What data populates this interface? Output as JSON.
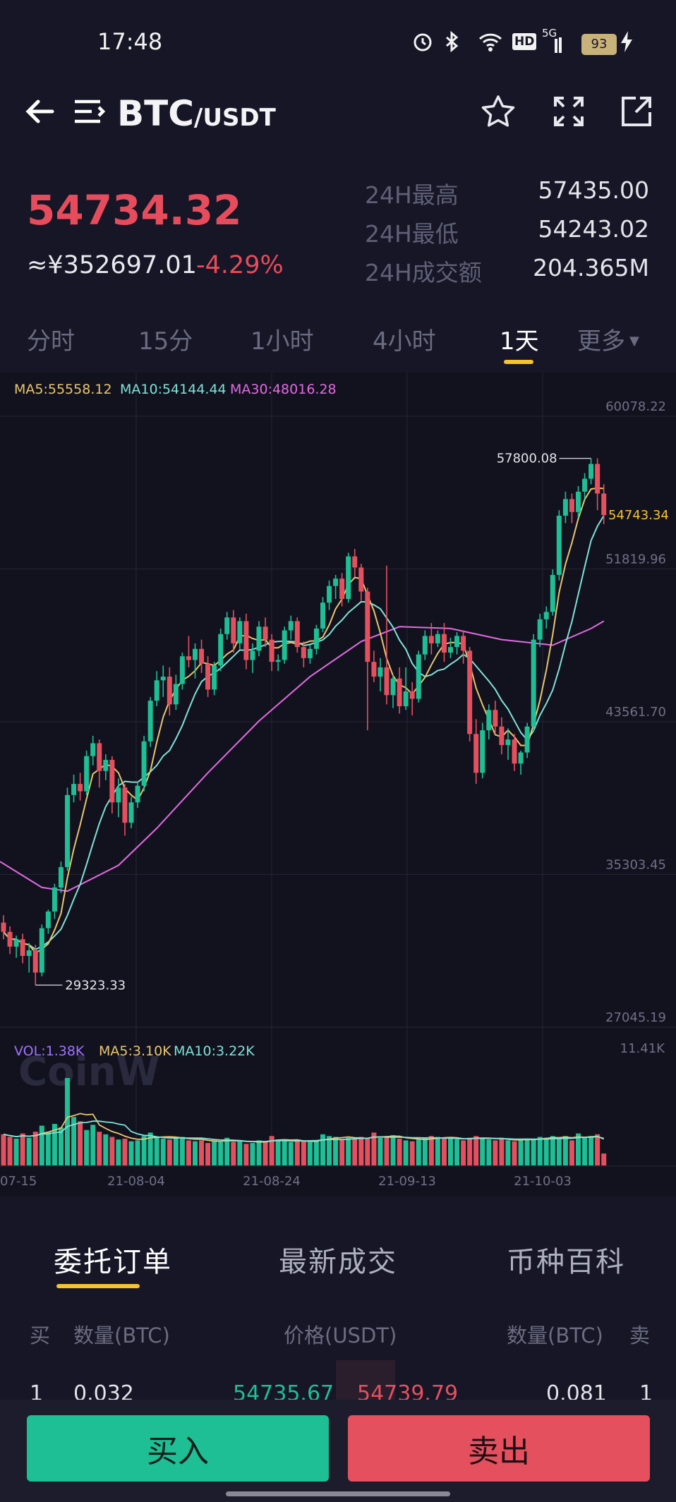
{
  "status_bar": {
    "time": "17:48",
    "network": "5G",
    "hd": "HD",
    "battery": "93",
    "icons": [
      "alarm-icon",
      "bluetooth-icon",
      "wifi-icon",
      "hd-icon",
      "signal-icon",
      "battery-icon",
      "charging-icon"
    ]
  },
  "header": {
    "base": "BTC",
    "quote": "/USDT",
    "icons": [
      "back-arrow-icon",
      "menu-icon",
      "star-icon",
      "fullscreen-icon",
      "share-icon"
    ]
  },
  "ticker": {
    "last_price": "54734.32",
    "cny_price": "≈¥352697.01",
    "change_pct": "-4.29%",
    "stats": [
      {
        "label": "24H最高",
        "value": "57435.00"
      },
      {
        "label": "24H最低",
        "value": "54243.02"
      },
      {
        "label": "24H成交额",
        "value": "204.365M"
      }
    ]
  },
  "timeframes": [
    "分时",
    "15分",
    "1小时",
    "4小时",
    "1天",
    "更多"
  ],
  "active_timeframe": "1天",
  "colors": {
    "up": "#1ebf95",
    "down": "#e5505f",
    "accent": "#f5c32c",
    "ma5": "#e8c66f",
    "ma10": "#7fe3d8",
    "ma30": "#e26be0",
    "vol": "#a173ff"
  },
  "chart_data": {
    "type": "candlestick",
    "indicators": {
      "ma5": "MA5:55558.12",
      "ma10": "MA10:54144.44",
      "ma30": "MA30:48016.28"
    },
    "y_ticks": [
      "60078.22",
      "51819.96",
      "43561.70",
      "35303.45",
      "27045.19"
    ],
    "y_range": [
      27045.19,
      60078.22
    ],
    "current_price_label": "54743.34",
    "high_marker": "57800.08",
    "low_marker": "29323.33",
    "watermark": "CoinW",
    "volume": {
      "label": "VOL:1.38K",
      "ma5": "MA5:3.10K",
      "ma10": "MA10:3.22K",
      "max_tick": "11.41K"
    },
    "x_ticks": [
      "07-15",
      "21-08-04",
      "21-08-24",
      "21-09-13",
      "21-10-03"
    ],
    "candles_ohlc": [
      [
        32700,
        33100,
        31800,
        32200
      ],
      [
        32200,
        32500,
        31000,
        31400
      ],
      [
        31400,
        32000,
        30800,
        31800
      ],
      [
        31800,
        32100,
        30500,
        30900
      ],
      [
        30900,
        31600,
        30000,
        31200
      ],
      [
        31200,
        31500,
        29323,
        30000
      ],
      [
        30000,
        32600,
        29800,
        32400
      ],
      [
        32400,
        33400,
        32100,
        33300
      ],
      [
        33300,
        34800,
        32900,
        34600
      ],
      [
        34600,
        36000,
        34300,
        35700
      ],
      [
        35700,
        40000,
        35500,
        39600
      ],
      [
        39600,
        40700,
        39200,
        40200
      ],
      [
        40200,
        40800,
        39300,
        39800
      ],
      [
        39800,
        42000,
        39600,
        41700
      ],
      [
        41700,
        42800,
        41200,
        42400
      ],
      [
        42400,
        42600,
        40000,
        40900
      ],
      [
        40900,
        41800,
        40400,
        41500
      ],
      [
        41500,
        41700,
        38600,
        39200
      ],
      [
        39200,
        40500,
        38400,
        40000
      ],
      [
        40000,
        40200,
        37400,
        38100
      ],
      [
        38100,
        39500,
        37800,
        39200
      ],
      [
        39200,
        40300,
        38900,
        40100
      ],
      [
        40100,
        42800,
        39800,
        42500
      ],
      [
        42500,
        44900,
        42200,
        44700
      ],
      [
        44700,
        46300,
        44400,
        45800
      ],
      [
        45800,
        46600,
        44900,
        46000
      ],
      [
        46000,
        46500,
        43900,
        44500
      ],
      [
        44500,
        46100,
        44200,
        45600
      ],
      [
        45600,
        47300,
        45300,
        47100
      ],
      [
        47100,
        48200,
        46500,
        46900
      ],
      [
        46900,
        47800,
        45900,
        47500
      ],
      [
        47500,
        48000,
        46200,
        46700
      ],
      [
        46700,
        47100,
        44900,
        45300
      ],
      [
        45300,
        46800,
        45000,
        46600
      ],
      [
        46600,
        48600,
        46300,
        48300
      ],
      [
        48300,
        49500,
        48000,
        49200
      ],
      [
        49200,
        49600,
        47300,
        47800
      ],
      [
        47800,
        49200,
        47500,
        49000
      ],
      [
        49000,
        49400,
        46400,
        46900
      ],
      [
        46900,
        47800,
        46200,
        47400
      ],
      [
        47400,
        49000,
        47100,
        48700
      ],
      [
        48700,
        49200,
        47600,
        48000
      ],
      [
        48000,
        48300,
        46300,
        46800
      ],
      [
        46800,
        47200,
        46300,
        46900
      ],
      [
        46900,
        48700,
        46700,
        48500
      ],
      [
        48500,
        49300,
        48000,
        49000
      ],
      [
        49000,
        49200,
        47300,
        47600
      ],
      [
        47600,
        47900,
        46500,
        47000
      ],
      [
        47000,
        47700,
        46700,
        47500
      ],
      [
        47500,
        48800,
        47200,
        48600
      ],
      [
        48600,
        50300,
        48400,
        50000
      ],
      [
        50000,
        51200,
        49600,
        50900
      ],
      [
        50900,
        51500,
        50200,
        51300
      ],
      [
        51300,
        51600,
        49800,
        50200
      ],
      [
        50200,
        52700,
        50000,
        52500
      ],
      [
        52500,
        52900,
        51400,
        51900
      ],
      [
        51900,
        52100,
        50100,
        50600
      ],
      [
        50600,
        50800,
        43100,
        46800
      ],
      [
        46800,
        47400,
        45700,
        46000
      ],
      [
        46000,
        47000,
        45200,
        46500
      ],
      [
        46500,
        52000,
        44500,
        45000
      ],
      [
        45000,
        46100,
        44300,
        45900
      ],
      [
        45900,
        46500,
        44000,
        44400
      ],
      [
        44400,
        46500,
        44200,
        45200
      ],
      [
        45200,
        45700,
        43900,
        44800
      ],
      [
        44800,
        47400,
        44600,
        47200
      ],
      [
        47200,
        48500,
        46900,
        48200
      ],
      [
        48200,
        48900,
        47200,
        47800
      ],
      [
        47800,
        48500,
        47600,
        48300
      ],
      [
        48300,
        48900,
        46800,
        47300
      ],
      [
        47300,
        48100,
        47000,
        47600
      ],
      [
        47600,
        48400,
        47200,
        48200
      ],
      [
        48200,
        48500,
        46700,
        47400
      ],
      [
        47400,
        47600,
        42500,
        42900
      ],
      [
        42900,
        43700,
        40200,
        40800
      ],
      [
        40800,
        43500,
        40500,
        43100
      ],
      [
        43100,
        44500,
        42600,
        44200
      ],
      [
        44200,
        44700,
        42900,
        43300
      ],
      [
        43300,
        43800,
        41800,
        42300
      ],
      [
        42300,
        43200,
        41500,
        42600
      ],
      [
        42600,
        42900,
        40900,
        41300
      ],
      [
        41300,
        42000,
        40700,
        41900
      ],
      [
        41900,
        43500,
        41600,
        43300
      ],
      [
        43300,
        48300,
        43000,
        48000
      ],
      [
        48000,
        49400,
        47600,
        49100
      ],
      [
        49100,
        49800,
        48600,
        49500
      ],
      [
        49500,
        51800,
        49300,
        51500
      ],
      [
        51500,
        55000,
        51200,
        54700
      ],
      [
        54700,
        56000,
        54300,
        55600
      ],
      [
        55600,
        55900,
        54300,
        54900
      ],
      [
        54900,
        56300,
        54600,
        56000
      ],
      [
        56000,
        57000,
        55600,
        56700
      ],
      [
        56700,
        57800,
        56400,
        57500
      ],
      [
        57500,
        57800,
        55000,
        55900
      ],
      [
        55900,
        56400,
        54243,
        54734
      ]
    ],
    "ma30_series": [
      [
        0,
        36000
      ],
      [
        6,
        34600
      ],
      [
        10,
        34400
      ],
      [
        18,
        35800
      ],
      [
        24,
        37800
      ],
      [
        32,
        40800
      ],
      [
        40,
        43600
      ],
      [
        48,
        46000
      ],
      [
        56,
        47900
      ],
      [
        62,
        48700
      ],
      [
        70,
        48600
      ],
      [
        78,
        48000
      ],
      [
        86,
        47700
      ],
      [
        92,
        48600
      ],
      [
        94,
        49000
      ]
    ],
    "volume_values": [
      3.6,
      3.3,
      3.1,
      3.7,
      3.2,
      3.9,
      4.6,
      3.9,
      4.8,
      4.4,
      10.1,
      5.6,
      5.1,
      4.1,
      4.7,
      3.9,
      3.6,
      3.3,
      3.0,
      3.1,
      2.8,
      2.9,
      3.4,
      3.8,
      3.3,
      3.1,
      3.0,
      3.2,
      3.3,
      2.9,
      2.8,
      2.9,
      2.6,
      2.9,
      2.7,
      3.2,
      2.7,
      2.8,
      2.5,
      2.6,
      2.9,
      2.8,
      3.4,
      3.0,
      2.8,
      2.7,
      2.9,
      2.8,
      2.7,
      2.8,
      3.6,
      3.4,
      3.3,
      3.0,
      3.2,
      3.1,
      3.3,
      3.1,
      3.8,
      3.2,
      3.3,
      3.5,
      3.1,
      2.9,
      2.8,
      3.0,
      3.2,
      3.4,
      3.3,
      3.1,
      3.2,
      3.0,
      2.9,
      3.2,
      3.4,
      3.1,
      3.0,
      2.9,
      3.2,
      2.9,
      2.8,
      3.0,
      3.1,
      3.1,
      3.3,
      3.2,
      3.4,
      3.1,
      3.4,
      2.9,
      3.7,
      3.2,
      3.4,
      3.6,
      1.38
    ],
    "volume_max": 11.41
  },
  "order_tabs": [
    "委托订单",
    "最新成交",
    "币种百科"
  ],
  "orderbook": {
    "headers": {
      "buy": "买",
      "buy_qty": "数量(BTC)",
      "price": "价格(USDT)",
      "sell_qty": "数量(BTC)",
      "sell": "卖"
    },
    "rows": [
      {
        "buy_index": "1",
        "buy_qty": "0.032",
        "bid": "54735.67",
        "ask": "54739.79",
        "sell_qty": "0.081",
        "sell_index": "1"
      }
    ]
  },
  "actions": {
    "buy": "买入",
    "sell": "卖出"
  }
}
